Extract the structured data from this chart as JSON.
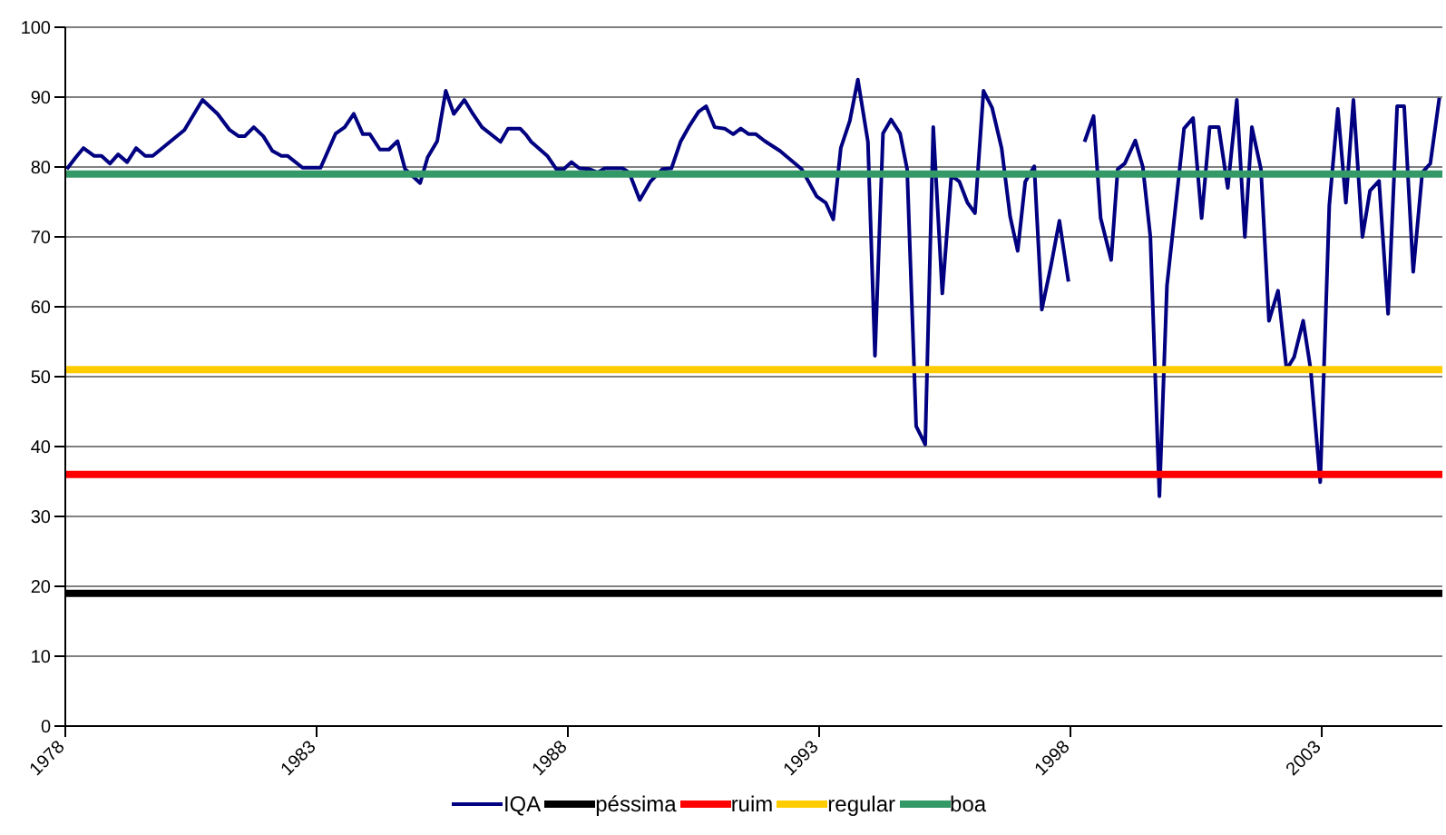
{
  "chart_data": {
    "type": "line",
    "xlim": [
      1978,
      2005.4
    ],
    "xticks": [
      1978,
      1983,
      1988,
      1993,
      1998,
      2003
    ],
    "ylim": [
      0,
      100
    ],
    "yticks": [
      0,
      10,
      20,
      30,
      40,
      50,
      60,
      70,
      80,
      90,
      100
    ],
    "grid": "y",
    "legend": "bottom",
    "marker": "none",
    "line_style": "solid",
    "series": [
      {
        "name": "IQA",
        "color": "#000080",
        "x": [
          1978.03,
          1978.21,
          1978.36,
          1978.57,
          1978.72,
          1978.89,
          1979.05,
          1979.23,
          1979.41,
          1979.59,
          1979.74,
          1980.37,
          1980.73,
          1981.03,
          1981.27,
          1981.45,
          1981.57,
          1981.75,
          1981.94,
          1982.12,
          1982.3,
          1982.42,
          1982.72,
          1983.08,
          1983.38,
          1983.56,
          1983.74,
          1983.92,
          1984.06,
          1984.26,
          1984.44,
          1984.61,
          1984.76,
          1985.06,
          1985.21,
          1985.4,
          1985.57,
          1985.73,
          1985.94,
          1986.11,
          1986.29,
          1986.66,
          1986.81,
          1987.05,
          1987.17,
          1987.27,
          1987.59,
          1987.77,
          1987.92,
          1988.07,
          1988.23,
          1988.43,
          1988.59,
          1988.73,
          1989.09,
          1989.22,
          1989.43,
          1989.64,
          1989.88,
          1990.06,
          1990.24,
          1990.42,
          1990.6,
          1990.75,
          1990.92,
          1991.12,
          1991.29,
          1991.44,
          1991.6,
          1991.74,
          1991.92,
          1992.22,
          1992.65,
          1992.95,
          1993.13,
          1993.28,
          1993.43,
          1993.61,
          1993.77,
          1993.97,
          1994.11,
          1994.27,
          1994.43,
          1994.61,
          1994.75,
          1994.93,
          1995.11,
          1995.27,
          1995.45,
          1995.63,
          1995.79,
          1995.95,
          1996.1,
          1996.27,
          1996.44,
          1996.63,
          1996.8,
          1996.95,
          1997.1,
          1997.28,
          1997.43,
          1997.61,
          1997.78,
          1997.96,
          1998.1,
          1998.28,
          1998.46,
          1998.6,
          1998.81,
          1998.94,
          1999.08,
          1999.29,
          1999.44,
          1999.59,
          1999.77,
          1999.92,
          2000.26,
          2000.44,
          2000.61,
          2000.77,
          2000.95,
          2001.13,
          2001.31,
          2001.47,
          2001.61,
          2001.79,
          2001.95,
          2002.13,
          2002.3,
          2002.45,
          2002.63,
          2002.78,
          2002.97,
          2003.15,
          2003.32,
          2003.48,
          2003.63,
          2003.81,
          2003.96,
          2004.14,
          2004.32,
          2004.5,
          2004.64,
          2004.82,
          2005,
          2005.16,
          2005.34
        ],
        "values": [
          79.7,
          81.4,
          82.7,
          81.6,
          81.6,
          80.5,
          81.8,
          80.7,
          82.7,
          81.6,
          81.6,
          85.3,
          89.6,
          87.6,
          85.3,
          84.4,
          84.4,
          85.7,
          84.4,
          82.3,
          81.6,
          81.6,
          79.9,
          79.9,
          84.8,
          85.7,
          87.6,
          84.7,
          84.7,
          82.5,
          82.5,
          83.7,
          79.7,
          77.7,
          81.4,
          83.7,
          90.9,
          87.6,
          89.6,
          87.6,
          85.7,
          83.6,
          85.5,
          85.5,
          84.6,
          83.6,
          81.6,
          79.7,
          79.7,
          80.7,
          79.8,
          79.7,
          79.2,
          79.8,
          79.8,
          79.2,
          75.3,
          77.9,
          79.7,
          79.8,
          83.6,
          85.9,
          87.9,
          88.7,
          85.7,
          85.5,
          84.7,
          85.5,
          84.7,
          84.7,
          83.7,
          82.3,
          79.7,
          75.8,
          74.9,
          72.5,
          82.7,
          86.6,
          92.5,
          83.6,
          53,
          84.8,
          86.8,
          84.8,
          79.7,
          42.9,
          40.3,
          85.7,
          61.9,
          78.8,
          77.9,
          74.9,
          73.4,
          90.9,
          88.5,
          82.7,
          72.9,
          68,
          77.9,
          80.1,
          59.6,
          65.8,
          72.3,
          63.6,
          null,
          83.6,
          87.3,
          72.7,
          66.7,
          79.7,
          80.5,
          83.8,
          80,
          70,
          32.9,
          63,
          85.5,
          87,
          72.7,
          85.7,
          85.7,
          77,
          89.6,
          70,
          85.7,
          79.7,
          58,
          62.3,
          51,
          52.8,
          58,
          51,
          34.9,
          74.5,
          88.3,
          74.9,
          89.6,
          70,
          76.6,
          78,
          59,
          88.7,
          88.7,
          65,
          79.2,
          80.5,
          89.9
        ]
      },
      {
        "name": "péssima",
        "color": "#000000",
        "x": [
          1978,
          2005.4
        ],
        "values": [
          19,
          19
        ]
      },
      {
        "name": "ruim",
        "color": "#ff0000",
        "x": [
          1978,
          2005.4
        ],
        "values": [
          36,
          36
        ]
      },
      {
        "name": "regular",
        "color": "#ffcc00",
        "x": [
          1978,
          2005.4
        ],
        "values": [
          51,
          51
        ]
      },
      {
        "name": "boa",
        "color": "#339966",
        "x": [
          1978,
          2005.4
        ],
        "values": [
          79,
          79
        ]
      }
    ]
  }
}
